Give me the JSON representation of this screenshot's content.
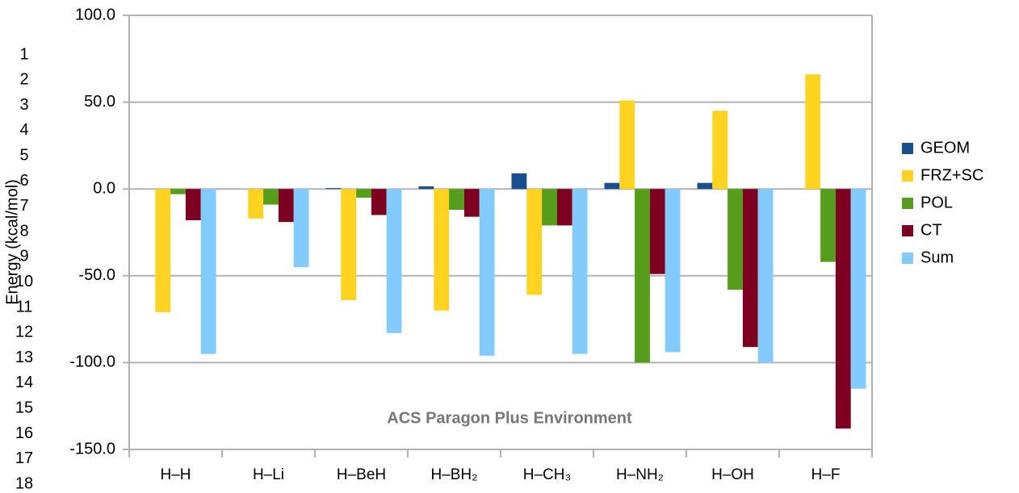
{
  "chart_data": {
    "type": "bar",
    "y_label": "Energy (kcal/mol)",
    "annotation": "ACS Paragon Plus Environment",
    "line_numbers": [
      1,
      2,
      3,
      4,
      5,
      6,
      7,
      8,
      9,
      10,
      11,
      12,
      13,
      14,
      15,
      16,
      17,
      18
    ],
    "categories": [
      "H–H",
      "H–Li",
      "H–BeH",
      "H–BH₂",
      "H–CH₃",
      "H–NH₂",
      "H–OH",
      "H–F"
    ],
    "series": [
      {
        "name": "GEOM",
        "color": "#1a4e8f",
        "values": [
          0,
          0,
          0.5,
          1.5,
          9,
          3.5,
          3.5,
          0
        ]
      },
      {
        "name": "FRZ+SC",
        "color": "#ffd320",
        "values": [
          -71,
          -17,
          -64,
          -70,
          -61,
          51,
          45,
          66
        ]
      },
      {
        "name": "POL",
        "color": "#579d1c",
        "values": [
          -3,
          -9,
          -5,
          -12,
          -21,
          -100,
          -58,
          -42
        ]
      },
      {
        "name": "CT",
        "color": "#7e0021",
        "values": [
          -18,
          -19,
          -15,
          -16,
          -21,
          -49,
          -91,
          -138
        ]
      },
      {
        "name": "Sum",
        "color": "#83caff",
        "values": [
          -95,
          -45,
          -83,
          -96,
          -95,
          -94,
          -100,
          -115
        ]
      }
    ],
    "ylim": [
      -150,
      100
    ],
    "yticks": [
      {
        "value": -150,
        "label": "-150.0"
      },
      {
        "value": -100,
        "label": "-100.0"
      },
      {
        "value": -50,
        "label": "-50.0"
      },
      {
        "value": 0,
        "label": "0.0"
      },
      {
        "value": 50,
        "label": "50.0"
      },
      {
        "value": 100,
        "label": "100.0"
      }
    ],
    "grid": true,
    "legend": "right"
  }
}
